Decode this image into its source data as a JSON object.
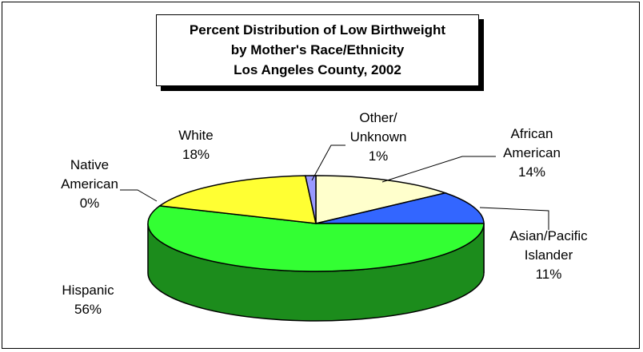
{
  "chart_data": {
    "type": "pie",
    "title_lines": [
      "Percent Distribution of Low Birthweight",
      "by Mother's Race/Ethnicity",
      "Los Angeles County, 2002"
    ],
    "slices": [
      {
        "name": "African American",
        "label_lines": [
          "African",
          "American",
          "14%"
        ],
        "value": 14,
        "color": "#ffffcc"
      },
      {
        "name": "Asian/Pacific Islander",
        "label_lines": [
          "Asian/Pacific",
          "Islander",
          "11%"
        ],
        "value": 11,
        "color": "#3366ff"
      },
      {
        "name": "Hispanic",
        "label_lines": [
          "Hispanic",
          "56%"
        ],
        "value": 56,
        "color": "#33ff33"
      },
      {
        "name": "Native American",
        "label_lines": [
          "Native",
          "American",
          "0%"
        ],
        "value": 0,
        "color": "#ff3333"
      },
      {
        "name": "White",
        "label_lines": [
          "White",
          "18%"
        ],
        "value": 18,
        "color": "#ffff33"
      },
      {
        "name": "Other/Unknown",
        "label_lines": [
          "Other/",
          "Unknown",
          "1%"
        ],
        "value": 1,
        "color": "#9999ff"
      }
    ],
    "legend": "none"
  }
}
